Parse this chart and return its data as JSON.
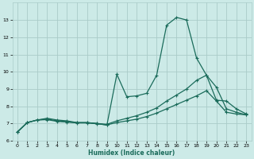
{
  "title": "",
  "xlabel": "Humidex (Indice chaleur)",
  "background_color": "#cceae7",
  "grid_color": "#aaccc9",
  "line_color": "#1a6b5a",
  "xlim": [
    -0.5,
    23.5
  ],
  "ylim": [
    6,
    14
  ],
  "yticks": [
    6,
    7,
    8,
    9,
    10,
    11,
    12,
    13
  ],
  "xticks": [
    0,
    1,
    2,
    3,
    4,
    5,
    6,
    7,
    8,
    9,
    10,
    11,
    12,
    13,
    14,
    15,
    16,
    17,
    18,
    19,
    20,
    21,
    22,
    23
  ],
  "series": [
    {
      "x": [
        0,
        1,
        2,
        3,
        4,
        5,
        6,
        7,
        8,
        9,
        10,
        11,
        12,
        13,
        14,
        15,
        16,
        17,
        18,
        19,
        20,
        21,
        22,
        23
      ],
      "y": [
        6.5,
        7.05,
        7.2,
        7.3,
        7.2,
        7.15,
        7.05,
        7.05,
        7.0,
        6.9,
        9.85,
        8.55,
        8.6,
        8.75,
        9.8,
        12.7,
        13.15,
        13.0,
        10.8,
        9.8,
        8.35,
        8.3,
        7.85,
        7.55
      ]
    },
    {
      "x": [
        0,
        1,
        2,
        3,
        4,
        5,
        6,
        7,
        8,
        9,
        10,
        11,
        12,
        13,
        14,
        15,
        16,
        17,
        18,
        19,
        20,
        21,
        22,
        23
      ],
      "y": [
        6.5,
        7.05,
        7.2,
        7.25,
        7.15,
        7.1,
        7.05,
        7.05,
        7.0,
        6.95,
        7.15,
        7.3,
        7.45,
        7.65,
        7.9,
        8.3,
        8.65,
        9.0,
        9.5,
        9.8,
        9.1,
        7.85,
        7.65,
        7.5
      ]
    },
    {
      "x": [
        0,
        1,
        2,
        3,
        4,
        5,
        6,
        7,
        8,
        9,
        10,
        11,
        12,
        13,
        14,
        15,
        16,
        17,
        18,
        19,
        20,
        21,
        22,
        23
      ],
      "y": [
        6.5,
        7.05,
        7.2,
        7.22,
        7.12,
        7.08,
        7.03,
        7.03,
        6.98,
        6.92,
        7.05,
        7.15,
        7.25,
        7.4,
        7.6,
        7.85,
        8.1,
        8.35,
        8.6,
        8.9,
        8.3,
        7.65,
        7.55,
        7.5
      ]
    }
  ]
}
